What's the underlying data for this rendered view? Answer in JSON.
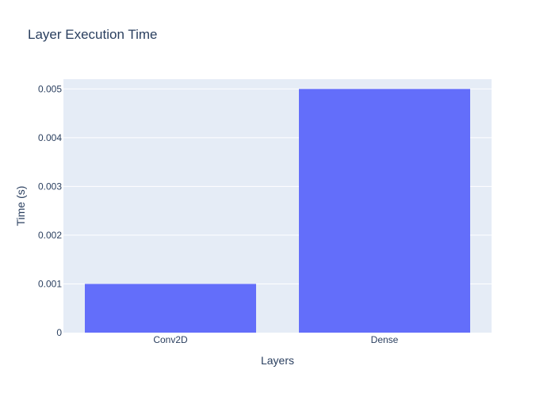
{
  "chart_data": {
    "type": "bar",
    "title": "Layer Execution Time",
    "xlabel": "Layers",
    "ylabel": "Time (s)",
    "categories": [
      "Conv2D",
      "Dense"
    ],
    "values": [
      0.001,
      0.005
    ],
    "ylim": [
      0,
      0.0052
    ],
    "yticks": [
      0,
      0.001,
      0.002,
      0.003,
      0.004,
      0.005
    ],
    "ytick_labels": [
      "0",
      "0.001",
      "0.002",
      "0.003",
      "0.004",
      "0.005"
    ],
    "grid": true,
    "legend": "none",
    "colors": {
      "bar": "#636efa",
      "plot_background": "#e5ecf6",
      "grid": "#ffffff",
      "text": "#2a3f5f"
    }
  }
}
